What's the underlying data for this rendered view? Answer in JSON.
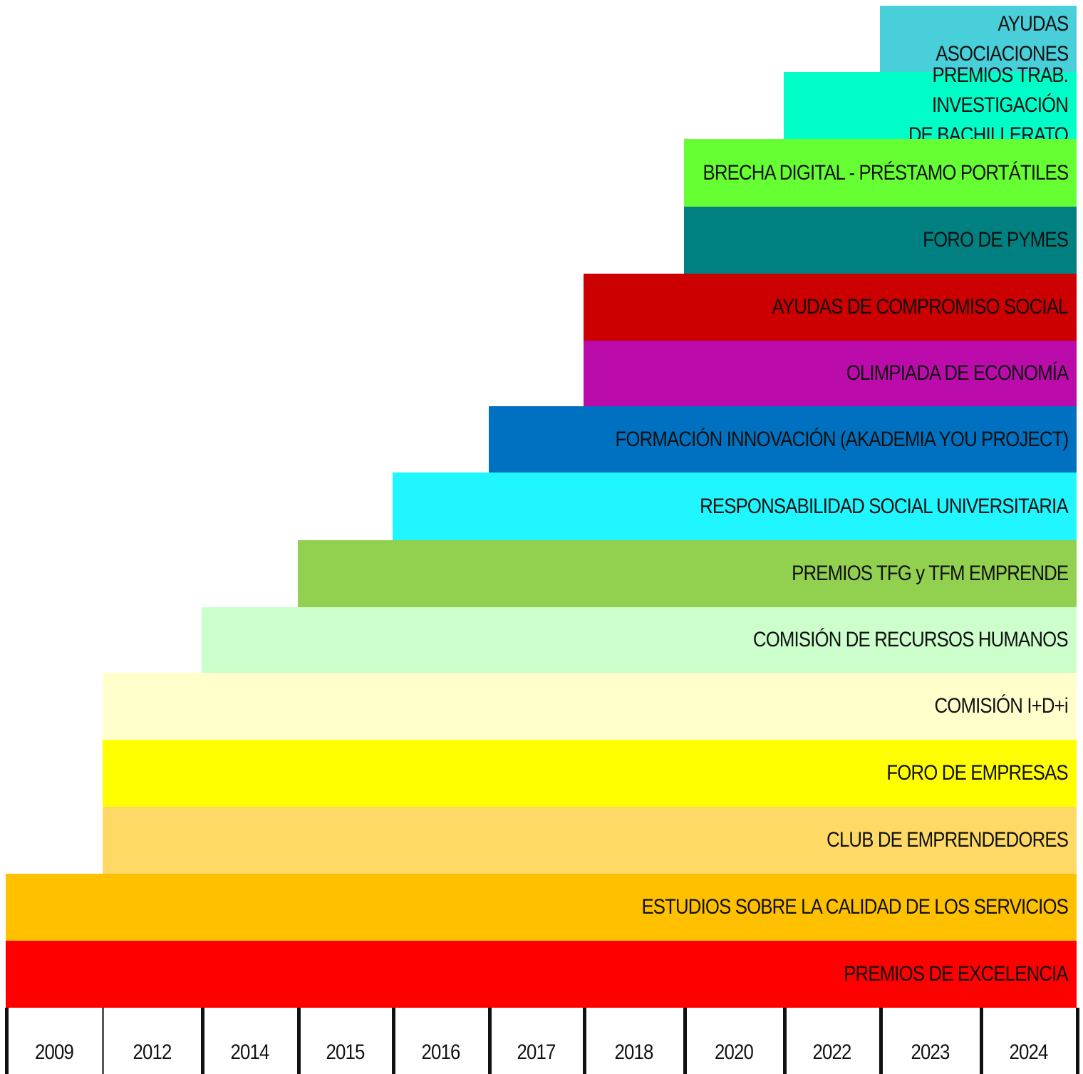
{
  "years": [
    "2009",
    "2012",
    "2014",
    "2015",
    "2016",
    "2017",
    "2018",
    "2020",
    "2022",
    "2023",
    "2024"
  ],
  "programs": [
    {
      "lines": [
        "AYUDAS",
        "ASOCIACIONES"
      ],
      "start": "2023",
      "color": "#48cfd9"
    },
    {
      "lines": [
        "PREMIOS TRAB. INVESTIGACIÓN",
        "DE BACHILLERATO"
      ],
      "start": "2022",
      "color": "#00ffc8"
    },
    {
      "lines": [
        "BRECHA DIGITAL - PRÉSTAMO PORTÁTILES"
      ],
      "start": "2020",
      "color": "#66ff33"
    },
    {
      "lines": [
        "FORO DE PYMES"
      ],
      "start": "2020",
      "color": "#008080"
    },
    {
      "lines": [
        "AYUDAS DE COMPROMISO SOCIAL"
      ],
      "start": "2018",
      "color": "#cc0000"
    },
    {
      "lines": [
        "OLIMPIADA DE ECONOMÍA"
      ],
      "start": "2018",
      "color": "#bb0bab"
    },
    {
      "lines": [
        "FORMACIÓN INNOVACIÓN (AKADEMIA YOU PROJECT)"
      ],
      "start": "2017",
      "color": "#0070c0"
    },
    {
      "lines": [
        "RESPONSABILIDAD SOCIAL UNIVERSITARIA"
      ],
      "start": "2016",
      "color": "#20f6ff"
    },
    {
      "lines": [
        "PREMIOS TFG y TFM EMPRENDE"
      ],
      "start": "2015",
      "color": "#92d050"
    },
    {
      "lines": [
        "COMISIÓN DE RECURSOS HUMANOS"
      ],
      "start": "2014",
      "color": "#ccffcc"
    },
    {
      "lines": [
        "COMISIÓN I+D+i"
      ],
      "start": "2012",
      "color": "#ffffcc"
    },
    {
      "lines": [
        "FORO DE EMPRESAS"
      ],
      "start": "2012",
      "color": "#ffff00"
    },
    {
      "lines": [
        "CLUB DE EMPRENDEDORES"
      ],
      "start": "2012",
      "color": "#ffd966"
    },
    {
      "lines": [
        "ESTUDIOS SOBRE LA CALIDAD DE LOS SERVICIOS"
      ],
      "start": "2009",
      "color": "#ffc000"
    },
    {
      "lines": [
        "PREMIOS DE EXCELENCIA"
      ],
      "start": "2009",
      "color": "#ff0000"
    }
  ]
}
